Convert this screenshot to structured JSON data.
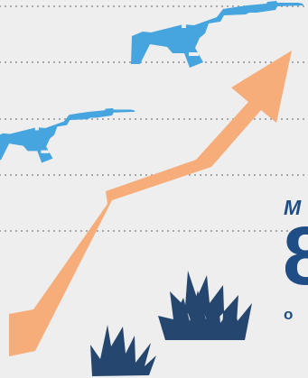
{
  "visible_text": {
    "top_fragment": "M",
    "middle_fragment": "8",
    "bottom_fragment": "o"
  },
  "colors": {
    "background": "#eeeeee",
    "dotted_lines": "#8f949c",
    "trend_arrow": "#f7ad79",
    "rifles": "#46a4df",
    "bursts": "#25466f",
    "text": "#1f4d86"
  },
  "icons": {
    "trend": "upward-trend-arrow",
    "weapon": "rifle-icon",
    "impact": "burst-icon"
  }
}
